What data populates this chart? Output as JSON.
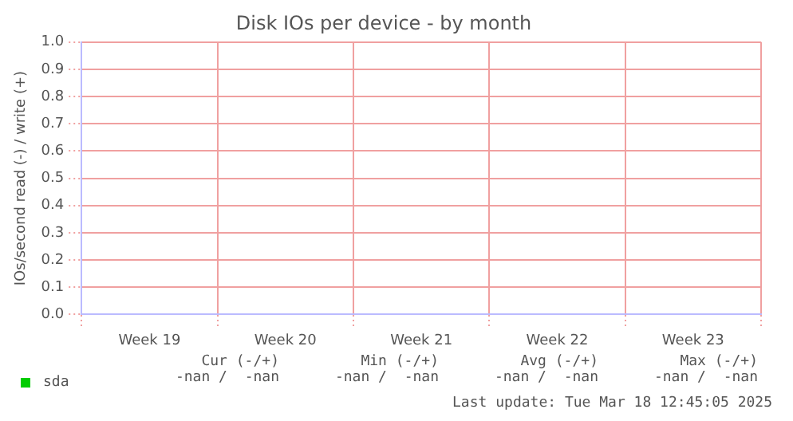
{
  "chart_data": {
    "type": "line",
    "title": "Disk IOs per device - by month",
    "ylabel": "IOs/second read (-) / write (+)",
    "categories": [
      "Week 19",
      "Week 20",
      "Week 21",
      "Week 22",
      "Week 23"
    ],
    "series": [
      {
        "name": "sda",
        "color": "#00cc00",
        "values": [
          null,
          null,
          null,
          null,
          null
        ]
      }
    ],
    "ylim": [
      0,
      1
    ],
    "yticks": [
      {
        "value": 0,
        "label": "0.0"
      },
      {
        "value": 0.1,
        "label": "0.1"
      },
      {
        "value": 0.2,
        "label": "0.2"
      },
      {
        "value": 0.3,
        "label": "0.3"
      },
      {
        "value": 0.4,
        "label": "0.4"
      },
      {
        "value": 0.5,
        "label": "0.5"
      },
      {
        "value": 0.6,
        "label": "0.6"
      },
      {
        "value": 0.7,
        "label": "0.7"
      },
      {
        "value": 0.8,
        "label": "0.8"
      },
      {
        "value": 0.9,
        "label": "0.9"
      },
      {
        "value": 1,
        "label": "1.0"
      }
    ],
    "grid": true,
    "legend": "bottom left",
    "annotations": [
      "Cur (-/+)",
      "Min (-/+)",
      "Avg (-/+)",
      "Max (-/+)",
      "-nan /  -nan",
      "-nan /  -nan",
      "-nan /  -nan",
      "-nan /  -nan",
      "Last update: Tue Mar 18 12:45:05 2025"
    ]
  }
}
